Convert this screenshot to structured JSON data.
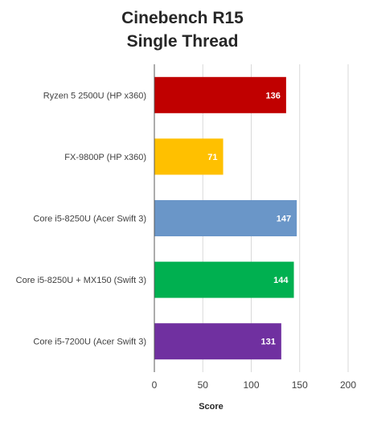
{
  "chart_data": {
    "type": "bar",
    "orientation": "horizontal",
    "title": "Cinebench R15",
    "subtitle": "Single Thread",
    "xlabel": "Score",
    "ylabel": "",
    "xlim": [
      0,
      200
    ],
    "x_ticks": [
      "0",
      "50",
      "100",
      "150",
      "200"
    ],
    "grid": "vertical",
    "categories": [
      "Ryzen 5 2500U (HP x360)",
      "FX-9800P (HP x360)",
      "Core i5-8250U (Acer Swift 3)",
      "Core i5-8250U + MX150 (Swift 3)",
      "Core i5-7200U (Acer Swift 3)"
    ],
    "values": [
      136,
      71,
      147,
      144,
      131
    ],
    "data_labels": [
      "136",
      "71",
      "147",
      "144",
      "131"
    ],
    "colors": [
      "#c00000",
      "#ffc000",
      "#6a96c8",
      "#00b050",
      "#7030a0"
    ]
  }
}
